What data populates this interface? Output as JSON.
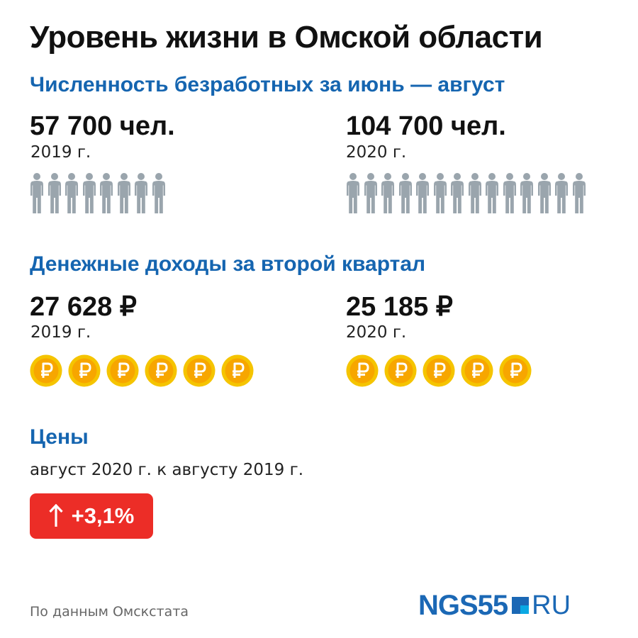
{
  "title": "Уровень жизни в Омской области",
  "unemployment": {
    "heading": "Численность безработных за июнь — август",
    "left": {
      "value": "57 700 чел.",
      "year": "2019 г.",
      "icon_count": 8
    },
    "right": {
      "value": "104 700 чел.",
      "year": "2020 г.",
      "icon_count": 14
    },
    "icon": "person-silhouette-icon",
    "icon_color": "#9aa5ad"
  },
  "income": {
    "heading": "Денежные доходы за второй квартал",
    "left": {
      "value": "27 628 ₽",
      "year": "2019 г.",
      "icon_count": 6
    },
    "right": {
      "value": "25 185 ₽",
      "year": "2020 г.",
      "icon_count": 5
    },
    "icon": "ruble-coin-icon",
    "coin_colors": {
      "rim": "#f5c400",
      "center": "#f7a600",
      "symbol": "#ffffff"
    }
  },
  "prices": {
    "heading": "Цены",
    "subline": "август 2020 г. к августу 2019 г.",
    "change": "+3,1%",
    "icon": "arrow-up-icon",
    "badge_color": "#ec2d27"
  },
  "source": "По данным Омскстата",
  "logo": {
    "left": "NGS55",
    "right": "RU",
    "color": "#1b68b5",
    "accent": "#0ba8e3"
  },
  "colors": {
    "heading": "#1565b0",
    "text": "#111111"
  }
}
